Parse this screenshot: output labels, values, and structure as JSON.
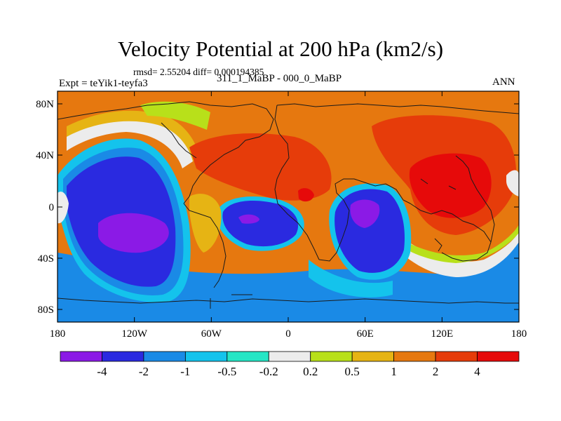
{
  "title": "Velocity Potential at 200 hPa (km2/s)",
  "stats_text": "rmsd= 2.55204  diff= 0.000194385",
  "left_label": "Expt = teYik1-teyfa3",
  "center_label": "311_1_MaBP - 000_0_MaBP",
  "right_label": "ANN",
  "lat_ticks": [
    "80N",
    "40N",
    "0",
    "40S",
    "80S"
  ],
  "lon_ticks": [
    "180",
    "120W",
    "60W",
    "0",
    "60E",
    "120E",
    "180"
  ],
  "colorbar": {
    "labels": [
      "-4",
      "-2",
      "-1",
      "-0.5",
      "-0.2",
      "0.2",
      "0.5",
      "1",
      "2",
      "4"
    ],
    "colors": [
      "#8b1ae6",
      "#2a2ae0",
      "#1a8ae6",
      "#14c3ec",
      "#25e6c5",
      "#ececec",
      "#b8e01a",
      "#e6b414",
      "#e6780f",
      "#e63c0a",
      "#e60a0a"
    ]
  }
}
